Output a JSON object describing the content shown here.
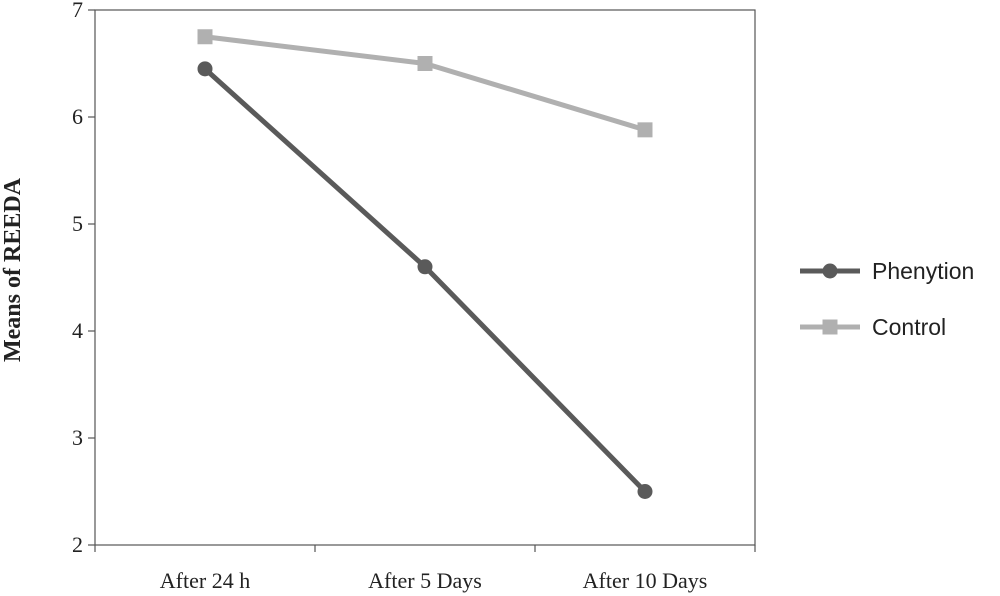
{
  "chart_data": {
    "type": "line",
    "title": "",
    "xlabel": "",
    "ylabel": "Means of REEDA",
    "categories": [
      "After 24 h",
      "After 5 Days",
      "After 10 Days"
    ],
    "ylim": [
      2,
      7
    ],
    "yticks": [
      "2",
      "3",
      "4",
      "5",
      "6",
      "7"
    ],
    "grid": false,
    "legend_position": "right",
    "series": [
      {
        "name": "Phenytion",
        "values": [
          6.45,
          4.6,
          2.5
        ],
        "color": "#5a5a5a",
        "marker": "circle"
      },
      {
        "name": "Control",
        "values": [
          6.75,
          6.5,
          5.88
        ],
        "color": "#b0b0b0",
        "marker": "square"
      }
    ]
  }
}
